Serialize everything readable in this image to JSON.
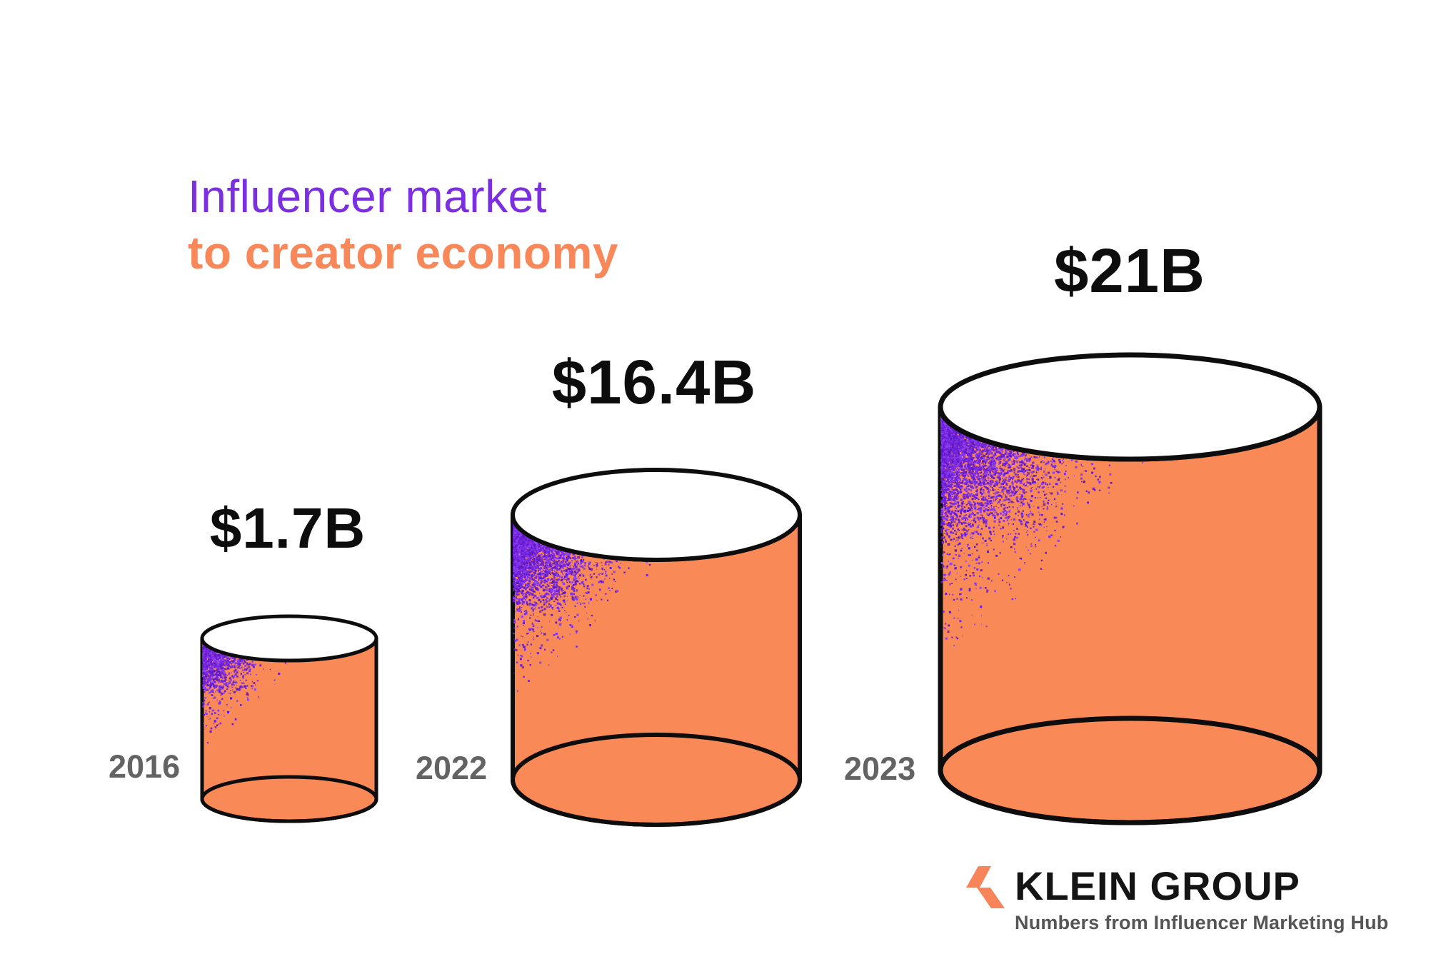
{
  "page": {
    "background": "#FFFFFF"
  },
  "title": {
    "line1": "Influencer market",
    "line2": "to creator economy",
    "line1_color": "#7B2FE0",
    "line2_color": "#F8875A"
  },
  "chart_data": {
    "type": "bar",
    "variant": "3d-cylinders",
    "title": "Influencer market to creator economy",
    "categories": [
      "2016",
      "2022",
      "2023"
    ],
    "values": [
      1.7,
      16.4,
      21
    ],
    "unit": "USD billions",
    "value_labels": [
      "$1.7B",
      "$16.4B",
      "$21B"
    ],
    "source": "Numbers from Influencer Marketing Hub",
    "legend": false,
    "grid": false,
    "axes": false,
    "colors": {
      "cylinder_fill": "#F98A57",
      "cylinder_top_fill": "#FFFFFF",
      "outline": "#0D0D0D",
      "speckle_palette": [
        "#7C2BE6",
        "#6E20D8",
        "#8B3DF2",
        "#5F18C6"
      ],
      "year_label": "#636363",
      "value_label": "#0D0D0D"
    }
  },
  "logo": {
    "name": "KLEIN GROUP",
    "tagline": "Numbers from Influencer Marketing Hub",
    "mark_icon": "klein-chevron-mark",
    "mark_color": "#F8855A",
    "name_color": "#141414",
    "tagline_color": "#555555"
  }
}
